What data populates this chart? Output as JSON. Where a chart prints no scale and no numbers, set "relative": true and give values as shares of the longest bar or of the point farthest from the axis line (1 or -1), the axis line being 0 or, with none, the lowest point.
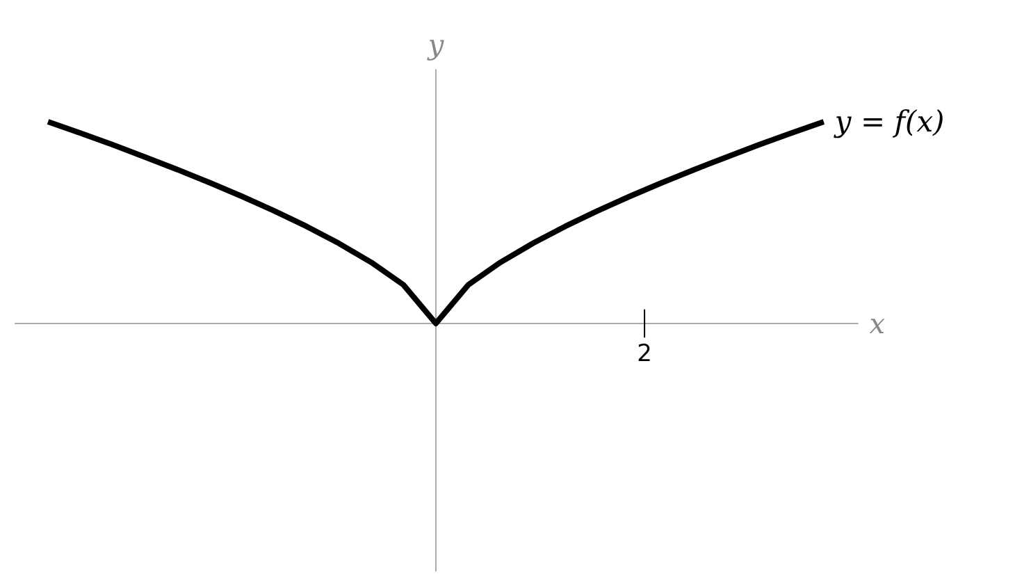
{
  "chart_data": {
    "type": "line",
    "relative": true,
    "xlabel": "x",
    "ylabel": "y",
    "marker": "none",
    "line_style": "solid",
    "annotations": [
      "2"
    ],
    "categories": [
      null,
      null,
      null,
      null,
      null,
      null,
      null,
      null,
      null,
      null,
      null,
      null,
      null,
      null,
      null,
      null,
      null,
      null,
      null,
      null,
      null,
      null,
      null,
      null,
      null
    ],
    "series": [
      {
        "name": "y = f(x)",
        "color": "#000000",
        "values": [
          1.0,
          0.944,
          0.886,
          0.825,
          0.763,
          0.698,
          0.63,
          0.558,
          0.481,
          0.397,
          0.303,
          0.191,
          0,
          0.191,
          0.303,
          0.397,
          0.481,
          0.558,
          0.63,
          0.698,
          0.763,
          0.825,
          0.886,
          0.944,
          1.0
        ]
      }
    ]
  }
}
